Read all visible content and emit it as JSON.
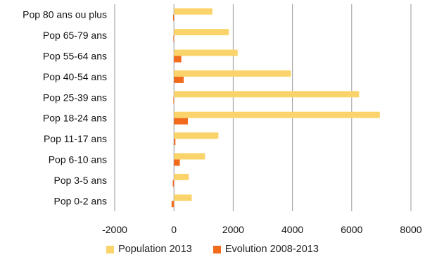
{
  "chart_data": {
    "type": "bar",
    "orientation": "horizontal",
    "categories": [
      "Pop 80 ans ou plus",
      "Pop 65-79 ans",
      "Pop 55-64 ans",
      "Pop 40-54 ans",
      "Pop 25-39 ans",
      "Pop 18-24 ans",
      "Pop 11-17 ans",
      "Pop 6-10 ans",
      "Pop 3-5 ans",
      "Pop 0-2 ans"
    ],
    "series": [
      {
        "name": "Population 2013",
        "color": "#FAD46B",
        "values": [
          1300,
          1850,
          2150,
          3950,
          6250,
          6950,
          1500,
          1050,
          500,
          600
        ]
      },
      {
        "name": "Evolution 2008-2013",
        "color": "#F26A1C",
        "values": [
          -30,
          -20,
          250,
          330,
          -20,
          470,
          50,
          200,
          -40,
          -80
        ]
      }
    ],
    "xlim": [
      -2000,
      8000
    ],
    "xticks": [
      "-2000",
      "0",
      "2000",
      "4000",
      "6000",
      "8000"
    ],
    "grid": "vertical",
    "legend_position": "bottom",
    "title": "",
    "xlabel": "",
    "ylabel": ""
  }
}
